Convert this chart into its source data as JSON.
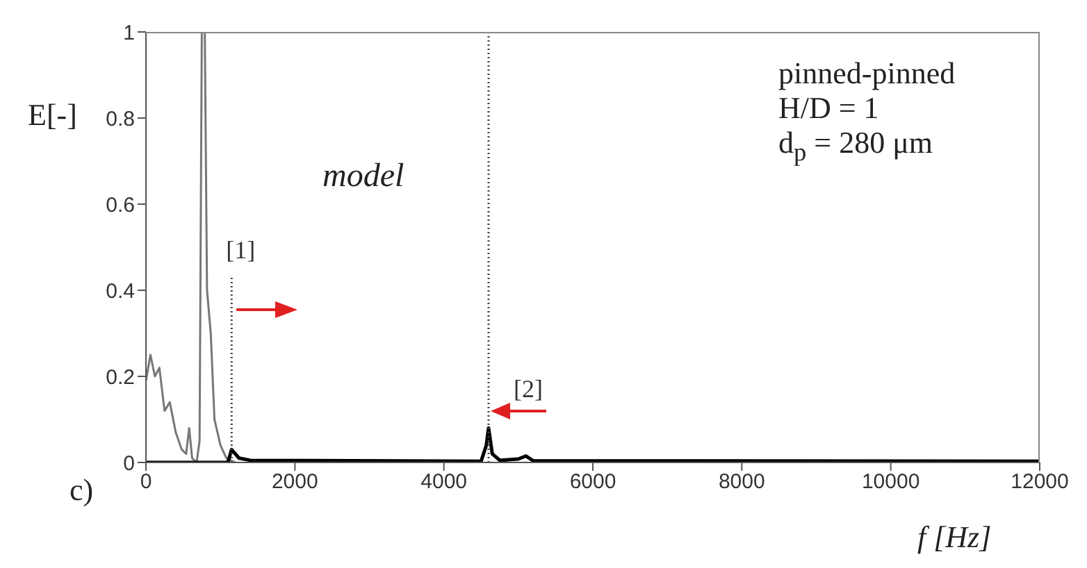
{
  "chart_data": {
    "type": "line",
    "xlabel": "f [Hz]",
    "ylabel": "E[-]",
    "xlim": [
      0,
      12000
    ],
    "xticks": [
      0,
      2000,
      4000,
      6000,
      8000,
      10000,
      12000
    ],
    "ylim": [
      0,
      1
    ],
    "yticks": [
      0,
      0.2,
      0.4,
      0.6,
      0.8,
      1
    ],
    "marker": "none",
    "series": [
      {
        "color": "#777777",
        "x": [
          0,
          60,
          120,
          180,
          250,
          320,
          400,
          480,
          540,
          580,
          620,
          680,
          720,
          750,
          790,
          820,
          870,
          920,
          1000,
          1080,
          1200
        ],
        "values": [
          0.19,
          0.25,
          0.2,
          0.22,
          0.12,
          0.14,
          0.07,
          0.03,
          0.02,
          0.08,
          0.01,
          0.0,
          0.05,
          1.0,
          1.0,
          0.4,
          0.3,
          0.1,
          0.04,
          0.01,
          0.0
        ]
      },
      {
        "color": "#000000",
        "x": [
          0,
          1100,
          1150,
          1250,
          1400,
          4500,
          4570,
          4600,
          4650,
          4750,
          5000,
          5100,
          5200,
          12000
        ],
        "values": [
          0,
          0,
          0.03,
          0.01,
          0.005,
          0.003,
          0.04,
          0.08,
          0.02,
          0.005,
          0.008,
          0.015,
          0.004,
          0.003
        ]
      },
      {
        "color": "#444444",
        "line_style": "dotted",
        "x": [
          1150,
          1150
        ],
        "values": [
          0,
          0.43
        ]
      },
      {
        "color": "#444444",
        "line_style": "dotted",
        "x": [
          4600,
          4600
        ],
        "values": [
          0,
          1
        ]
      }
    ],
    "annotations": [
      {
        "text": "[1]",
        "x": 1150,
        "y": 0.43
      },
      {
        "text": "[2]",
        "x": 4600,
        "y": 0.12
      },
      "model",
      "pinned-pinned",
      "H/D = 1",
      "d$_{p}$ = 280 μm",
      "c)"
    ]
  }
}
